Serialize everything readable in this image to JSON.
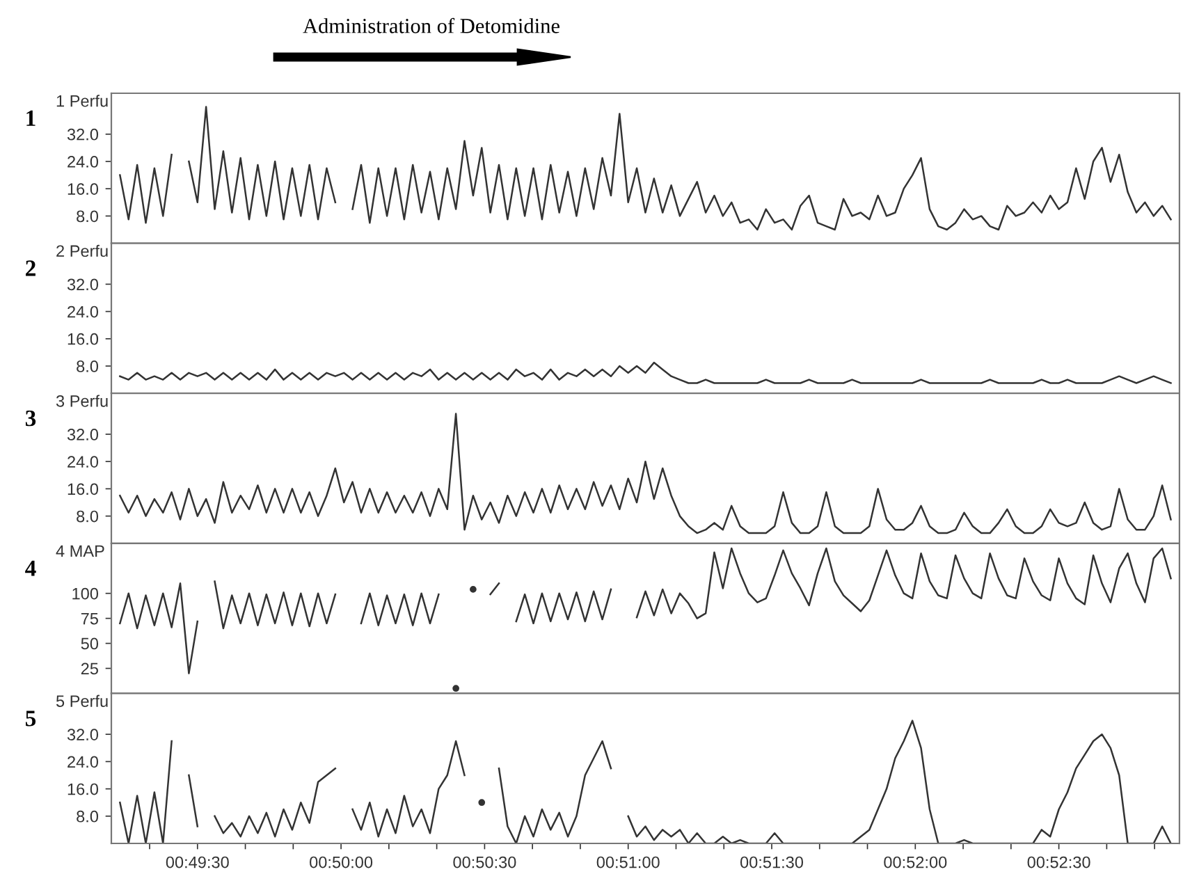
{
  "chart_data": [
    {
      "type": "line",
      "title": "Administration of Detomidine",
      "ylabel": "1 Perfu",
      "annotations": [
        "1"
      ],
      "tick_labels": "y",
      "grid": false,
      "xlim": [
        0.82,
        0.882
      ],
      "ylim": [
        0,
        44
      ],
      "yticks": [
        {
          "value": 8,
          "label": "8.0"
        },
        {
          "value": 16,
          "label": "16.0"
        },
        {
          "value": 24,
          "label": "24.0"
        },
        {
          "value": 32,
          "label": "32.0"
        }
      ],
      "x": [
        0.8205,
        0.821,
        0.8215,
        0.822,
        0.8225,
        0.823,
        0.8235,
        0.824,
        0.8245,
        0.825,
        0.8255,
        0.826,
        0.8265,
        0.827,
        0.8275,
        0.828,
        0.8285,
        0.829,
        0.8295,
        0.83,
        0.8305,
        0.831,
        0.8315,
        0.832,
        0.8325,
        0.833,
        0.8335,
        0.834,
        0.8345,
        0.835,
        0.8355,
        0.836,
        0.8365,
        0.837,
        0.8375,
        0.838,
        0.8385,
        0.839,
        0.8395,
        0.84,
        0.8405,
        0.841,
        0.8415,
        0.842,
        0.8425,
        0.843,
        0.8435,
        0.844,
        0.8445,
        0.845,
        0.8455,
        0.846,
        0.8465,
        0.847,
        0.8475,
        0.848,
        0.8485,
        0.849,
        0.8495,
        0.85,
        0.8505,
        0.851,
        0.8515,
        0.852,
        0.8525,
        0.853,
        0.8535,
        0.854,
        0.8545,
        0.855,
        0.8555,
        0.856,
        0.8565,
        0.857,
        0.8575,
        0.858,
        0.8585,
        0.859,
        0.8595,
        0.86,
        0.8605,
        0.861,
        0.8615,
        0.862,
        0.8625,
        0.863,
        0.8635,
        0.864,
        0.8645,
        0.865,
        0.8655,
        0.866,
        0.8665,
        0.867,
        0.8675,
        0.868,
        0.8685,
        0.869,
        0.8695,
        0.87,
        0.8705,
        0.871,
        0.8715,
        0.872,
        0.8725,
        0.873,
        0.8735,
        0.874,
        0.8745,
        0.875,
        0.8755,
        0.876,
        0.8765,
        0.877,
        0.8775,
        0.878,
        0.8785,
        0.879,
        0.8795,
        0.88,
        0.8805,
        0.881,
        0.8815
      ],
      "series": [
        {
          "color": "#333333",
          "values": [
            20,
            7,
            23,
            6,
            22,
            8,
            26,
            null,
            24,
            12,
            40,
            10,
            27,
            9,
            25,
            7,
            23,
            8,
            24,
            7,
            22,
            8,
            23,
            7,
            22,
            12,
            null,
            10,
            23,
            6,
            22,
            8,
            22,
            7,
            23,
            9,
            21,
            7,
            22,
            10,
            30,
            14,
            28,
            9,
            23,
            7,
            22,
            8,
            22,
            7,
            23,
            9,
            21,
            8,
            22,
            10,
            25,
            14,
            38,
            12,
            22,
            9,
            19,
            9,
            17,
            8,
            13,
            18,
            9,
            14,
            8,
            12,
            6,
            7,
            4,
            10,
            6,
            7,
            4,
            11,
            14,
            6,
            5,
            4,
            13,
            8,
            9,
            7,
            14,
            8,
            9,
            16,
            20,
            25,
            10,
            5,
            4,
            6,
            10,
            7,
            8,
            5,
            4,
            11,
            8,
            9,
            12,
            9,
            14,
            10,
            12,
            22,
            13,
            24,
            28,
            18,
            26,
            15,
            9,
            12,
            8,
            11,
            7
          ]
        }
      ]
    },
    {
      "type": "line",
      "ylabel": "2 Perfu",
      "annotations": [
        "2"
      ],
      "tick_labels": "y",
      "grid": false,
      "xlim": [
        0.82,
        0.882
      ],
      "ylim": [
        0,
        44
      ],
      "yticks": [
        {
          "value": 8,
          "label": "8.0"
        },
        {
          "value": 16,
          "label": "16.0"
        },
        {
          "value": 24,
          "label": "24.0"
        },
        {
          "value": 32,
          "label": "32.0"
        }
      ],
      "x": [
        0.8205,
        0.821,
        0.8215,
        0.822,
        0.8225,
        0.823,
        0.8235,
        0.824,
        0.8245,
        0.825,
        0.8255,
        0.826,
        0.8265,
        0.827,
        0.8275,
        0.828,
        0.8285,
        0.829,
        0.8295,
        0.83,
        0.8305,
        0.831,
        0.8315,
        0.832,
        0.8325,
        0.833,
        0.8335,
        0.834,
        0.8345,
        0.835,
        0.8355,
        0.836,
        0.8365,
        0.837,
        0.8375,
        0.838,
        0.8385,
        0.839,
        0.8395,
        0.84,
        0.8405,
        0.841,
        0.8415,
        0.842,
        0.8425,
        0.843,
        0.8435,
        0.844,
        0.8445,
        0.845,
        0.8455,
        0.846,
        0.8465,
        0.847,
        0.8475,
        0.848,
        0.8485,
        0.849,
        0.8495,
        0.85,
        0.8505,
        0.851,
        0.8515,
        0.852,
        0.8525,
        0.853,
        0.8535,
        0.854,
        0.8545,
        0.855,
        0.8555,
        0.856,
        0.8565,
        0.857,
        0.8575,
        0.858,
        0.8585,
        0.859,
        0.8595,
        0.86,
        0.8605,
        0.861,
        0.8615,
        0.862,
        0.8625,
        0.863,
        0.8635,
        0.864,
        0.8645,
        0.865,
        0.8655,
        0.866,
        0.8665,
        0.867,
        0.8675,
        0.868,
        0.8685,
        0.869,
        0.8695,
        0.87,
        0.8705,
        0.871,
        0.8715,
        0.872,
        0.8725,
        0.873,
        0.8735,
        0.874,
        0.8745,
        0.875,
        0.8755,
        0.876,
        0.8765,
        0.877,
        0.8775,
        0.878,
        0.8785,
        0.879,
        0.8795,
        0.88,
        0.8805,
        0.881,
        0.8815
      ],
      "series": [
        {
          "color": "#333333",
          "values": [
            5,
            4,
            6,
            4,
            5,
            4,
            6,
            4,
            6,
            5,
            6,
            4,
            6,
            4,
            6,
            4,
            6,
            4,
            7,
            4,
            6,
            4,
            6,
            4,
            6,
            5,
            6,
            4,
            6,
            4,
            6,
            4,
            6,
            4,
            6,
            5,
            7,
            4,
            6,
            4,
            6,
            4,
            6,
            4,
            6,
            4,
            7,
            5,
            6,
            4,
            7,
            4,
            6,
            5,
            7,
            5,
            7,
            5,
            8,
            6,
            8,
            6,
            9,
            7,
            5,
            4,
            3,
            3,
            4,
            3,
            3,
            3,
            3,
            3,
            3,
            4,
            3,
            3,
            3,
            3,
            4,
            3,
            3,
            3,
            3,
            4,
            3,
            3,
            3,
            3,
            3,
            3,
            3,
            4,
            3,
            3,
            3,
            3,
            3,
            3,
            3,
            4,
            3,
            3,
            3,
            3,
            3,
            4,
            3,
            3,
            4,
            3,
            3,
            3,
            3,
            4,
            5,
            4,
            3,
            4,
            5,
            4,
            3
          ]
        }
      ]
    },
    {
      "type": "line",
      "ylabel": "3 Perfu",
      "annotations": [
        "3"
      ],
      "tick_labels": "y",
      "grid": false,
      "xlim": [
        0.82,
        0.882
      ],
      "ylim": [
        0,
        44
      ],
      "yticks": [
        {
          "value": 8,
          "label": "8.0"
        },
        {
          "value": 16,
          "label": "16.0"
        },
        {
          "value": 24,
          "label": "24.0"
        },
        {
          "value": 32,
          "label": "32.0"
        }
      ],
      "x": [
        0.8205,
        0.821,
        0.8215,
        0.822,
        0.8225,
        0.823,
        0.8235,
        0.824,
        0.8245,
        0.825,
        0.8255,
        0.826,
        0.8265,
        0.827,
        0.8275,
        0.828,
        0.8285,
        0.829,
        0.8295,
        0.83,
        0.8305,
        0.831,
        0.8315,
        0.832,
        0.8325,
        0.833,
        0.8335,
        0.834,
        0.8345,
        0.835,
        0.8355,
        0.836,
        0.8365,
        0.837,
        0.8375,
        0.838,
        0.8385,
        0.839,
        0.8395,
        0.84,
        0.8405,
        0.841,
        0.8415,
        0.842,
        0.8425,
        0.843,
        0.8435,
        0.844,
        0.8445,
        0.845,
        0.8455,
        0.846,
        0.8465,
        0.847,
        0.8475,
        0.848,
        0.8485,
        0.849,
        0.8495,
        0.85,
        0.8505,
        0.851,
        0.8515,
        0.852,
        0.8525,
        0.853,
        0.8535,
        0.854,
        0.8545,
        0.855,
        0.8555,
        0.856,
        0.8565,
        0.857,
        0.8575,
        0.858,
        0.8585,
        0.859,
        0.8595,
        0.86,
        0.8605,
        0.861,
        0.8615,
        0.862,
        0.8625,
        0.863,
        0.8635,
        0.864,
        0.8645,
        0.865,
        0.8655,
        0.866,
        0.8665,
        0.867,
        0.8675,
        0.868,
        0.8685,
        0.869,
        0.8695,
        0.87,
        0.8705,
        0.871,
        0.8715,
        0.872,
        0.8725,
        0.873,
        0.8735,
        0.874,
        0.8745,
        0.875,
        0.8755,
        0.876,
        0.8765,
        0.877,
        0.8775,
        0.878,
        0.8785,
        0.879,
        0.8795,
        0.88,
        0.8805,
        0.881,
        0.8815
      ],
      "series": [
        {
          "color": "#333333",
          "values": [
            14,
            9,
            14,
            8,
            13,
            9,
            15,
            7,
            16,
            8,
            13,
            6,
            18,
            9,
            14,
            10,
            17,
            9,
            16,
            9,
            16,
            9,
            15,
            8,
            14,
            22,
            12,
            18,
            9,
            16,
            9,
            15,
            9,
            14,
            9,
            15,
            8,
            16,
            10,
            38,
            4,
            14,
            7,
            12,
            6,
            14,
            8,
            15,
            9,
            16,
            9,
            17,
            10,
            16,
            10,
            18,
            11,
            17,
            10,
            19,
            12,
            24,
            13,
            22,
            14,
            8,
            5,
            3,
            4,
            6,
            4,
            11,
            5,
            3,
            3,
            3,
            5,
            15,
            6,
            3,
            3,
            5,
            15,
            5,
            3,
            3,
            3,
            5,
            16,
            7,
            4,
            4,
            6,
            11,
            5,
            3,
            3,
            4,
            9,
            5,
            3,
            3,
            6,
            10,
            5,
            3,
            3,
            5,
            10,
            6,
            5,
            6,
            12,
            6,
            4,
            5,
            16,
            7,
            4,
            4,
            8,
            17,
            7
          ]
        }
      ]
    },
    {
      "type": "line",
      "ylabel": "4 MAP",
      "annotations": [
        "4"
      ],
      "tick_labels": "y",
      "grid": false,
      "xlim": [
        0.82,
        0.882
      ],
      "ylim": [
        0,
        150
      ],
      "yticks": [
        25,
        50,
        75,
        100
      ],
      "x": [
        0.8205,
        0.821,
        0.8215,
        0.822,
        0.8225,
        0.823,
        0.8235,
        0.824,
        0.8245,
        0.825,
        0.8255,
        0.826,
        0.8265,
        0.827,
        0.8275,
        0.828,
        0.8285,
        0.829,
        0.8295,
        0.83,
        0.8305,
        0.831,
        0.8315,
        0.832,
        0.8325,
        0.833,
        0.8335,
        0.834,
        0.8345,
        0.835,
        0.8355,
        0.836,
        0.8365,
        0.837,
        0.8375,
        0.838,
        0.8385,
        0.839,
        0.8395,
        0.84,
        0.8405,
        0.841,
        0.8415,
        0.842,
        0.8425,
        0.843,
        0.8435,
        0.844,
        0.8445,
        0.845,
        0.8455,
        0.846,
        0.8465,
        0.847,
        0.8475,
        0.848,
        0.8485,
        0.849,
        0.8495,
        0.85,
        0.8505,
        0.851,
        0.8515,
        0.852,
        0.8525,
        0.853,
        0.8535,
        0.854,
        0.8545,
        0.855,
        0.8555,
        0.856,
        0.8565,
        0.857,
        0.8575,
        0.858,
        0.8585,
        0.859,
        0.8595,
        0.86,
        0.8605,
        0.861,
        0.8615,
        0.862,
        0.8625,
        0.863,
        0.8635,
        0.864,
        0.8645,
        0.865,
        0.8655,
        0.866,
        0.8665,
        0.867,
        0.8675,
        0.868,
        0.8685,
        0.869,
        0.8695,
        0.87,
        0.8705,
        0.871,
        0.8715,
        0.872,
        0.8725,
        0.873,
        0.8735,
        0.874,
        0.8745,
        0.875,
        0.8755,
        0.876,
        0.8765,
        0.877,
        0.8775,
        0.878,
        0.8785,
        0.879,
        0.8795,
        0.88,
        0.8805,
        0.881,
        0.8815
      ],
      "series": [
        {
          "color": "#333333",
          "values": [
            70,
            100,
            65,
            98,
            68,
            100,
            66,
            110,
            20,
            72,
            null,
            112,
            65,
            98,
            70,
            100,
            68,
            99,
            70,
            101,
            68,
            100,
            67,
            100,
            70,
            99,
            null,
            null,
            70,
            100,
            68,
            98,
            70,
            99,
            68,
            100,
            70,
            99,
            null,
            5,
            null,
            104,
            null,
            99,
            110,
            null,
            72,
            99,
            70,
            100,
            72,
            100,
            74,
            101,
            72,
            102,
            74,
            104,
            null,
            null,
            76,
            102,
            78,
            104,
            80,
            100,
            90,
            75,
            80,
            141,
            105,
            145,
            120,
            100,
            91,
            95,
            118,
            143,
            120,
            105,
            88,
            120,
            145,
            112,
            98,
            90,
            82,
            93,
            118,
            143,
            118,
            100,
            95,
            140,
            112,
            98,
            95,
            138,
            115,
            100,
            95,
            140,
            115,
            98,
            95,
            135,
            112,
            98,
            93,
            135,
            110,
            95,
            89,
            138,
            110,
            91,
            125,
            140,
            110,
            91,
            135,
            145,
            115
          ]
        }
      ]
    },
    {
      "type": "line",
      "ylabel": "5 Perfu",
      "annotations": [
        "5"
      ],
      "grid": false,
      "xlim": [
        0.82,
        0.882
      ],
      "ylim": [
        0,
        44
      ],
      "yticks": [
        {
          "value": 8,
          "label": "8.0"
        },
        {
          "value": 16,
          "label": "16.0"
        },
        {
          "value": 24,
          "label": "24.0"
        },
        {
          "value": 32,
          "label": "32.0"
        }
      ],
      "xticks": [
        {
          "value": 0.822222,
          "label": null
        },
        {
          "value": 0.825,
          "label": "00:49:30"
        },
        {
          "value": 0.827778,
          "label": null
        },
        {
          "value": 0.830556,
          "label": null
        },
        {
          "value": 0.833333,
          "label": "00:50:00"
        },
        {
          "value": 0.836111,
          "label": null
        },
        {
          "value": 0.838889,
          "label": null
        },
        {
          "value": 0.841667,
          "label": "00:50:30"
        },
        {
          "value": 0.844444,
          "label": null
        },
        {
          "value": 0.847222,
          "label": null
        },
        {
          "value": 0.85,
          "label": "00:51:00"
        },
        {
          "value": 0.852778,
          "label": null
        },
        {
          "value": 0.855556,
          "label": null
        },
        {
          "value": 0.858333,
          "label": "00:51:30"
        },
        {
          "value": 0.861111,
          "label": null
        },
        {
          "value": 0.863889,
          "label": null
        },
        {
          "value": 0.866667,
          "label": "00:52:00"
        },
        {
          "value": 0.869444,
          "label": null
        },
        {
          "value": 0.872222,
          "label": null
        },
        {
          "value": 0.875,
          "label": "00:52:30"
        },
        {
          "value": 0.877778,
          "label": null
        },
        {
          "value": 0.880556,
          "label": null
        }
      ],
      "x": [
        0.8205,
        0.821,
        0.8215,
        0.822,
        0.8225,
        0.823,
        0.8235,
        0.824,
        0.8245,
        0.825,
        0.8255,
        0.826,
        0.8265,
        0.827,
        0.8275,
        0.828,
        0.8285,
        0.829,
        0.8295,
        0.83,
        0.8305,
        0.831,
        0.8315,
        0.832,
        0.8325,
        0.833,
        0.8335,
        0.834,
        0.8345,
        0.835,
        0.8355,
        0.836,
        0.8365,
        0.837,
        0.8375,
        0.838,
        0.8385,
        0.839,
        0.8395,
        0.84,
        0.8405,
        0.841,
        0.8415,
        0.842,
        0.8425,
        0.843,
        0.8435,
        0.844,
        0.8445,
        0.845,
        0.8455,
        0.846,
        0.8465,
        0.847,
        0.8475,
        0.848,
        0.8485,
        0.849,
        0.8495,
        0.85,
        0.8505,
        0.851,
        0.8515,
        0.852,
        0.8525,
        0.853,
        0.8535,
        0.854,
        0.8545,
        0.855,
        0.8555,
        0.856,
        0.8565,
        0.857,
        0.8575,
        0.858,
        0.8585,
        0.859,
        0.8595,
        0.86,
        0.8605,
        0.861,
        0.8615,
        0.862,
        0.8625,
        0.863,
        0.8635,
        0.864,
        0.8645,
        0.865,
        0.8655,
        0.866,
        0.8665,
        0.867,
        0.8675,
        0.868,
        0.8685,
        0.869,
        0.8695,
        0.87,
        0.8705,
        0.871,
        0.8715,
        0.872,
        0.8725,
        0.873,
        0.8735,
        0.874,
        0.8745,
        0.875,
        0.8755,
        0.876,
        0.8765,
        0.877,
        0.8775,
        0.878,
        0.8785,
        0.879,
        0.8795,
        0.88,
        0.8805,
        0.881,
        0.8815
      ],
      "series": [
        {
          "color": "#333333",
          "values": [
            12,
            0,
            14,
            0,
            15,
            0,
            30,
            null,
            20,
            5,
            null,
            8,
            3,
            6,
            2,
            8,
            3,
            9,
            2,
            10,
            4,
            12,
            6,
            18,
            20,
            22,
            null,
            10,
            4,
            12,
            2,
            10,
            3,
            14,
            5,
            10,
            3,
            16,
            20,
            30,
            20,
            null,
            12,
            null,
            22,
            5,
            0,
            8,
            2,
            10,
            4,
            9,
            2,
            8,
            20,
            25,
            30,
            22,
            null,
            8,
            2,
            5,
            1,
            4,
            2,
            4,
            0,
            3,
            0,
            0,
            2,
            0,
            1,
            0,
            0,
            0,
            3,
            0,
            0,
            0,
            0,
            0,
            0,
            0,
            0,
            0,
            2,
            4,
            10,
            16,
            25,
            30,
            36,
            28,
            10,
            0,
            0,
            0,
            1,
            0,
            0,
            0,
            0,
            0,
            0,
            0,
            0,
            4,
            2,
            10,
            15,
            22,
            26,
            30,
            32,
            28,
            20,
            0,
            0,
            0,
            0,
            5,
            0
          ]
        }
      ]
    }
  ]
}
